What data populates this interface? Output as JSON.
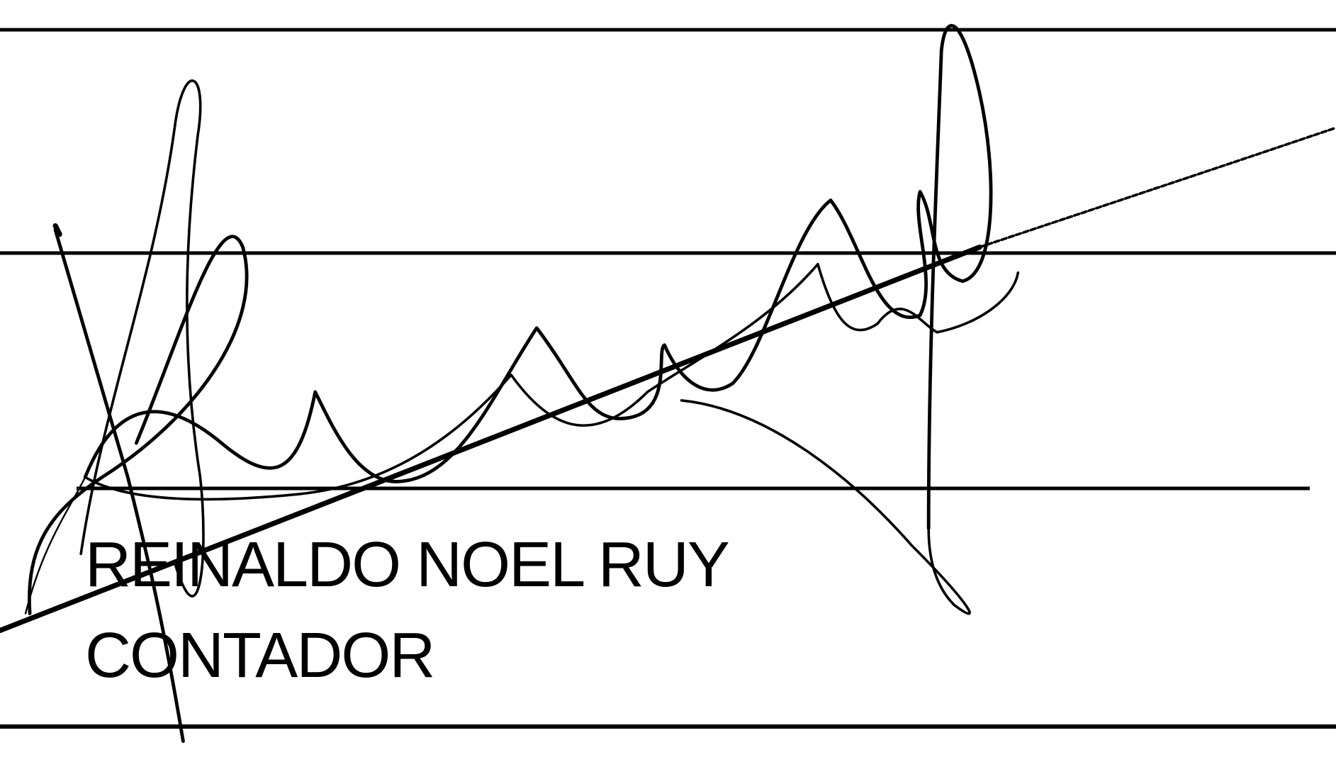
{
  "signature_block": {
    "name": "REINALDO NOEL RUY",
    "title": "CONTADOR"
  }
}
